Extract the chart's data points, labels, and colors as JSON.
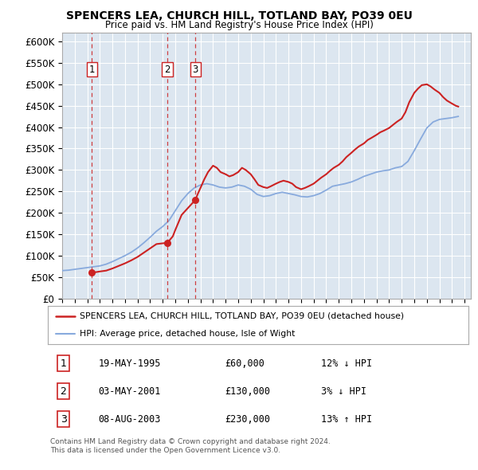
{
  "title": "SPENCERS LEA, CHURCH HILL, TOTLAND BAY, PO39 0EU",
  "subtitle": "Price paid vs. HM Land Registry's House Price Index (HPI)",
  "ylim": [
    0,
    620000
  ],
  "yticks": [
    0,
    50000,
    100000,
    150000,
    200000,
    250000,
    300000,
    350000,
    400000,
    450000,
    500000,
    550000,
    600000
  ],
  "xlim_start": 1993.0,
  "xlim_end": 2025.5,
  "transactions": [
    {
      "num": 1,
      "date": "19-MAY-1995",
      "price": 60000,
      "year": 1995.37
    },
    {
      "num": 2,
      "date": "03-MAY-2001",
      "price": 130000,
      "year": 2001.37
    },
    {
      "num": 3,
      "date": "08-AUG-2003",
      "price": 230000,
      "year": 2003.59
    }
  ],
  "legend_entries": [
    {
      "label": "SPENCERS LEA, CHURCH HILL, TOTLAND BAY, PO39 0EU (detached house)",
      "color": "#cc2222",
      "lw": 1.8
    },
    {
      "label": "HPI: Average price, detached house, Isle of Wight",
      "color": "#88aadd",
      "lw": 1.5
    }
  ],
  "footer_lines": [
    "Contains HM Land Registry data © Crown copyright and database right 2024.",
    "This data is licensed under the Open Government Licence v3.0."
  ],
  "table_rows": [
    [
      "1",
      "19-MAY-1995",
      "£60,000",
      "12% ↓ HPI"
    ],
    [
      "2",
      "03-MAY-2001",
      "£130,000",
      "3% ↓ HPI"
    ],
    [
      "3",
      "08-AUG-2003",
      "£230,000",
      "13% ↑ HPI"
    ]
  ],
  "background_color": "#ffffff",
  "plot_bg_color": "#dce6f0",
  "grid_color": "#ffffff",
  "red_line_color": "#cc2222",
  "blue_line_color": "#88aadd",
  "vline_color": "#cc2222"
}
